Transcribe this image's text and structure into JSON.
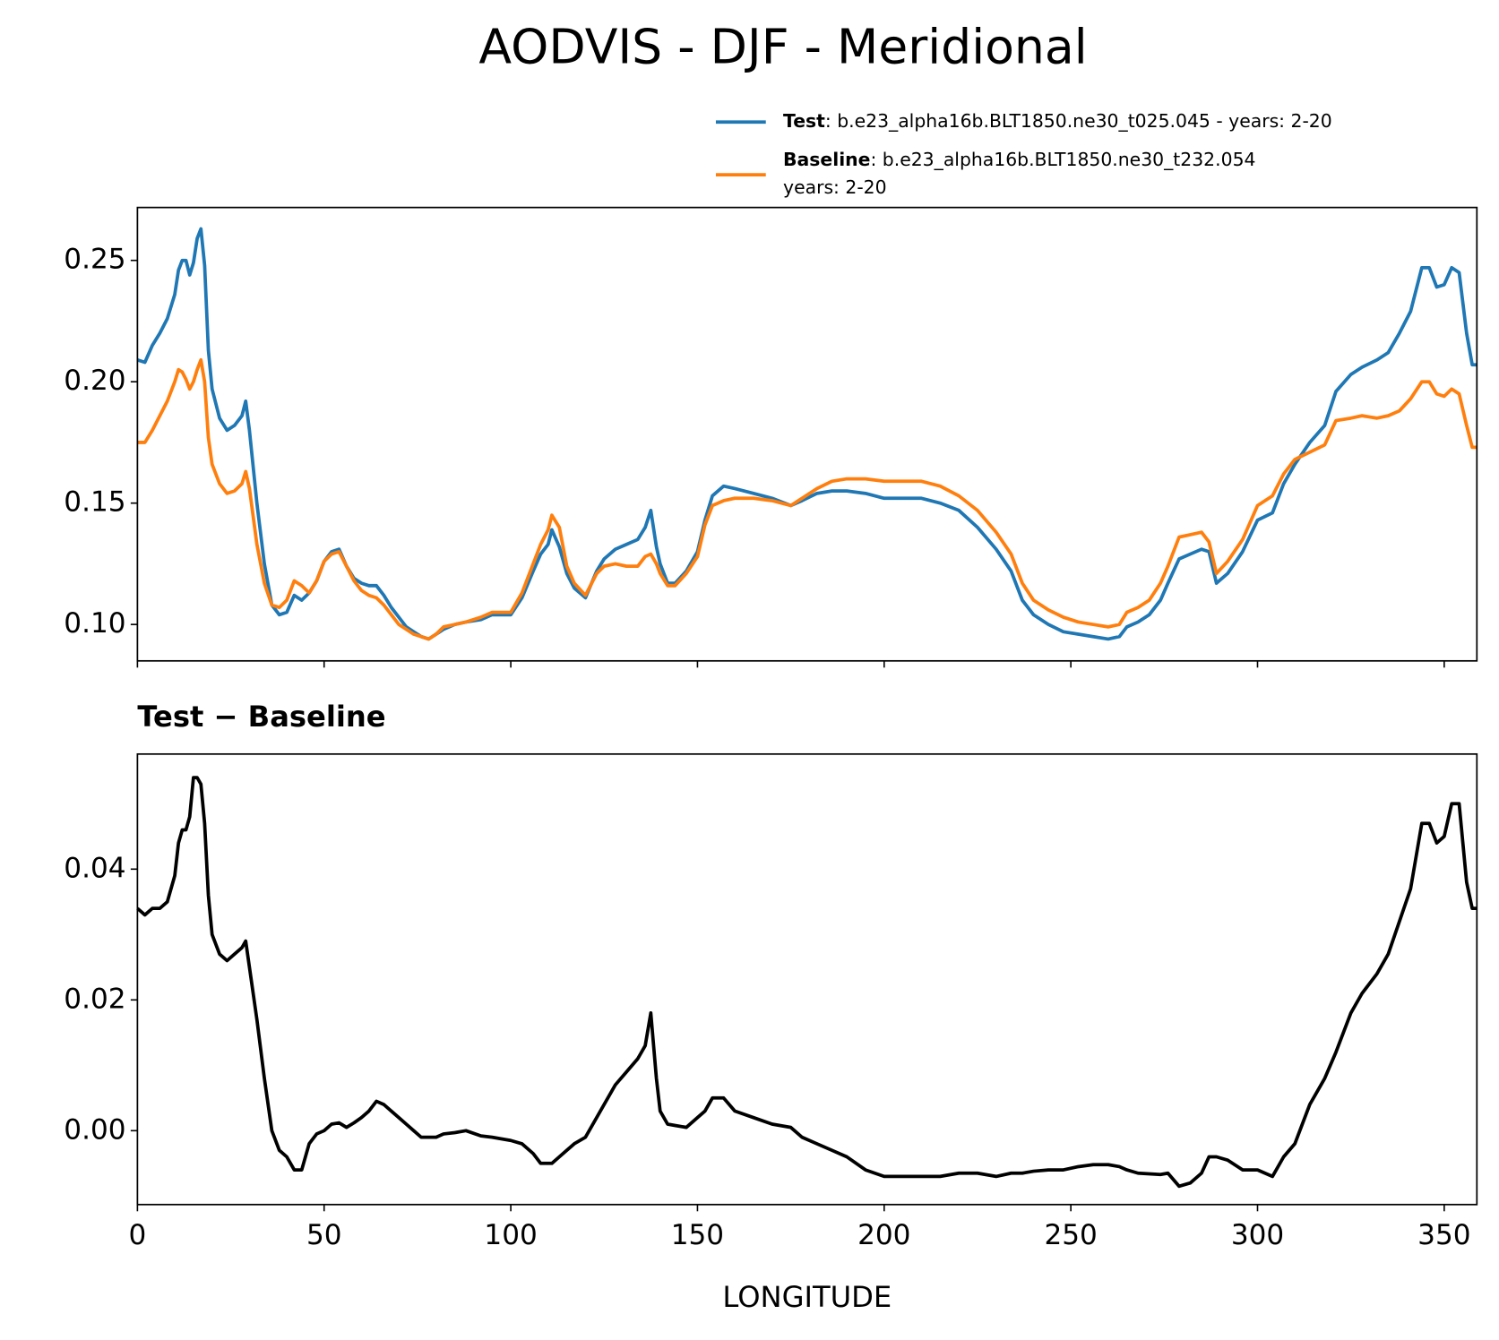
{
  "chart_data": [
    {
      "type": "line",
      "title": "AODVIS - DJF - Meridional",
      "x": [
        0,
        2,
        4,
        6,
        8,
        10,
        11,
        12,
        13,
        14,
        15,
        16,
        17,
        18,
        19,
        20,
        22,
        24,
        26,
        28,
        29,
        30,
        32,
        34,
        36,
        38,
        40,
        42,
        44,
        46,
        48,
        50,
        52,
        54,
        56,
        58,
        60,
        62,
        64,
        66,
        68,
        70,
        72,
        74,
        76,
        78,
        80,
        82,
        85,
        88,
        92,
        95,
        100,
        103,
        106,
        108,
        110,
        111,
        113,
        115,
        117,
        120,
        123,
        125,
        128,
        131,
        134,
        136,
        137.5,
        139,
        140,
        142,
        144,
        147,
        150,
        152,
        154,
        157,
        160,
        165,
        170,
        175,
        178,
        182,
        186,
        190,
        195,
        200,
        205,
        210,
        215,
        220,
        225,
        230,
        234,
        237,
        240,
        244,
        248,
        252,
        256,
        260,
        263,
        265,
        268,
        271,
        274,
        276,
        279,
        282,
        285,
        287,
        289,
        292,
        296,
        300,
        304,
        307,
        310,
        314,
        318,
        321,
        325,
        328,
        332,
        335,
        338,
        341,
        344,
        346,
        348,
        350,
        352,
        354,
        356,
        357.5,
        358.75
      ],
      "series": [
        {
          "name": "Test",
          "label": ": b.e23_alpha16b.BLT1850.ne30_t025.045 - years: 2-20",
          "color": "#1f77b4",
          "values": [
            0.209,
            0.208,
            0.215,
            0.22,
            0.226,
            0.236,
            0.246,
            0.25,
            0.25,
            0.244,
            0.249,
            0.259,
            0.263,
            0.248,
            0.213,
            0.197,
            0.185,
            0.18,
            0.182,
            0.186,
            0.192,
            0.18,
            0.15,
            0.125,
            0.108,
            0.104,
            0.105,
            0.112,
            0.11,
            0.113,
            0.118,
            0.126,
            0.13,
            0.131,
            0.124,
            0.119,
            0.117,
            0.116,
            0.116,
            0.112,
            0.107,
            0.103,
            0.099,
            0.097,
            0.095,
            0.094,
            0.096,
            0.098,
            0.1,
            0.101,
            0.102,
            0.104,
            0.104,
            0.111,
            0.122,
            0.129,
            0.133,
            0.139,
            0.132,
            0.121,
            0.115,
            0.111,
            0.122,
            0.127,
            0.131,
            0.133,
            0.135,
            0.14,
            0.147,
            0.132,
            0.125,
            0.117,
            0.117,
            0.122,
            0.13,
            0.143,
            0.153,
            0.157,
            0.156,
            0.154,
            0.152,
            0.149,
            0.151,
            0.154,
            0.155,
            0.155,
            0.154,
            0.152,
            0.152,
            0.152,
            0.15,
            0.147,
            0.14,
            0.131,
            0.122,
            0.11,
            0.104,
            0.1,
            0.097,
            0.096,
            0.095,
            0.094,
            0.095,
            0.099,
            0.101,
            0.104,
            0.11,
            0.117,
            0.127,
            0.129,
            0.131,
            0.13,
            0.117,
            0.121,
            0.13,
            0.143,
            0.146,
            0.158,
            0.166,
            0.175,
            0.182,
            0.196,
            0.203,
            0.206,
            0.209,
            0.212,
            0.22,
            0.229,
            0.247,
            0.247,
            0.239,
            0.24,
            0.247,
            0.245,
            0.22,
            0.207,
            0.207
          ]
        },
        {
          "name": "Baseline",
          "label_lines": [
            ": b.e23_alpha16b.BLT1850.ne30_t232.054",
            "years: 2-20"
          ],
          "color": "#ff7f0e",
          "values": [
            0.175,
            0.175,
            0.18,
            0.186,
            0.192,
            0.2,
            0.205,
            0.204,
            0.201,
            0.197,
            0.2,
            0.205,
            0.209,
            0.2,
            0.177,
            0.166,
            0.158,
            0.154,
            0.155,
            0.158,
            0.163,
            0.156,
            0.133,
            0.117,
            0.108,
            0.107,
            0.11,
            0.118,
            0.116,
            0.113,
            0.118,
            0.126,
            0.129,
            0.13,
            0.124,
            0.118,
            0.114,
            0.112,
            0.111,
            0.108,
            0.104,
            0.1,
            0.098,
            0.096,
            0.095,
            0.094,
            0.096,
            0.099,
            0.1,
            0.101,
            0.103,
            0.105,
            0.105,
            0.113,
            0.125,
            0.133,
            0.139,
            0.145,
            0.14,
            0.124,
            0.117,
            0.112,
            0.121,
            0.124,
            0.125,
            0.124,
            0.124,
            0.128,
            0.129,
            0.125,
            0.121,
            0.116,
            0.116,
            0.121,
            0.128,
            0.141,
            0.149,
            0.151,
            0.152,
            0.152,
            0.151,
            0.149,
            0.152,
            0.156,
            0.159,
            0.16,
            0.16,
            0.159,
            0.159,
            0.159,
            0.157,
            0.153,
            0.147,
            0.138,
            0.129,
            0.117,
            0.11,
            0.106,
            0.103,
            0.101,
            0.1,
            0.099,
            0.1,
            0.105,
            0.107,
            0.11,
            0.117,
            0.124,
            0.136,
            0.137,
            0.138,
            0.134,
            0.121,
            0.126,
            0.135,
            0.149,
            0.153,
            0.162,
            0.168,
            0.171,
            0.174,
            0.184,
            0.185,
            0.186,
            0.185,
            0.186,
            0.188,
            0.193,
            0.2,
            0.2,
            0.195,
            0.194,
            0.197,
            0.195,
            0.182,
            0.173,
            0.173
          ]
        }
      ],
      "xlim": [
        0,
        358.75
      ],
      "xticks": [
        0,
        50,
        100,
        150,
        200,
        250,
        300,
        350
      ],
      "ylim": [
        0.085,
        0.2718
      ],
      "yticks": [
        0.1,
        0.15,
        0.2,
        0.25
      ],
      "legend": "upper right"
    },
    {
      "type": "line",
      "title": "Test − Baseline",
      "xlabel": "LONGITUDE",
      "x": [
        0,
        2,
        4,
        6,
        8,
        10,
        11,
        12,
        13,
        14,
        15,
        16,
        17,
        18,
        19,
        20,
        22,
        24,
        26,
        28,
        29,
        30,
        32,
        34,
        36,
        38,
        40,
        42,
        44,
        46,
        48,
        50,
        52,
        54,
        56,
        58,
        60,
        62,
        64,
        66,
        68,
        70,
        72,
        74,
        76,
        78,
        80,
        82,
        85,
        88,
        92,
        95,
        100,
        103,
        106,
        108,
        110,
        111,
        113,
        115,
        117,
        120,
        123,
        125,
        128,
        131,
        134,
        136,
        137.5,
        139,
        140,
        142,
        144,
        147,
        150,
        152,
        154,
        157,
        160,
        165,
        170,
        175,
        178,
        182,
        186,
        190,
        195,
        200,
        205,
        210,
        215,
        220,
        225,
        230,
        234,
        237,
        240,
        244,
        248,
        252,
        256,
        260,
        263,
        265,
        268,
        271,
        274,
        276,
        279,
        282,
        285,
        287,
        289,
        292,
        296,
        300,
        304,
        307,
        310,
        314,
        318,
        321,
        325,
        328,
        332,
        335,
        338,
        341,
        344,
        346,
        348,
        350,
        352,
        354,
        356,
        357.5,
        358.75
      ],
      "series": [
        {
          "color": "#000000",
          "values": [
            0.034,
            0.033,
            0.034,
            0.034,
            0.035,
            0.039,
            0.044,
            0.046,
            0.046,
            0.048,
            0.054,
            0.054,
            0.053,
            0.047,
            0.036,
            0.03,
            0.027,
            0.026,
            0.027,
            0.028,
            0.029,
            0.025,
            0.017,
            0.008,
            0.0,
            -0.003,
            -0.004,
            -0.006,
            -0.006,
            -0.002,
            -0.0005,
            0.0,
            0.001,
            0.0012,
            0.0005,
            0.0012,
            0.002,
            0.003,
            0.0045,
            0.004,
            0.003,
            0.002,
            0.001,
            0.0,
            -0.001,
            -0.001,
            -0.001,
            -0.0005,
            -0.0003,
            0.0,
            -0.0008,
            -0.001,
            -0.0015,
            -0.002,
            -0.0035,
            -0.005,
            -0.005,
            -0.005,
            -0.004,
            -0.003,
            -0.002,
            -0.001,
            0.002,
            0.004,
            0.007,
            0.009,
            0.011,
            0.013,
            0.018,
            0.008,
            0.003,
            0.001,
            0.0008,
            0.0005,
            0.002,
            0.003,
            0.005,
            0.005,
            0.003,
            0.002,
            0.001,
            0.0005,
            -0.001,
            -0.002,
            -0.003,
            -0.004,
            -0.006,
            -0.007,
            -0.007,
            -0.007,
            -0.007,
            -0.0065,
            -0.0065,
            -0.007,
            -0.0065,
            -0.0065,
            -0.0062,
            -0.006,
            -0.006,
            -0.0055,
            -0.0052,
            -0.0052,
            -0.0055,
            -0.006,
            -0.0065,
            -0.0066,
            -0.0067,
            -0.0065,
            -0.0085,
            -0.008,
            -0.0065,
            -0.004,
            -0.004,
            -0.0045,
            -0.006,
            -0.006,
            -0.007,
            -0.004,
            -0.002,
            0.004,
            0.008,
            0.012,
            0.018,
            0.021,
            0.024,
            0.027,
            0.032,
            0.037,
            0.047,
            0.047,
            0.044,
            0.045,
            0.05,
            0.05,
            0.038,
            0.034,
            0.034
          ]
        }
      ],
      "xlim": [
        0,
        358.75
      ],
      "xticks": [
        0,
        50,
        100,
        150,
        200,
        250,
        300,
        350
      ],
      "ylim": [
        -0.0113,
        0.0576
      ],
      "yticks": [
        0.0,
        0.02,
        0.04
      ]
    }
  ]
}
